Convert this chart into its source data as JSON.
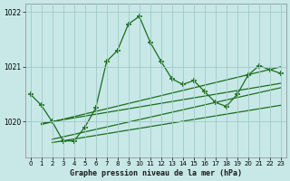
{
  "title": "Graphe pression niveau de la mer (hPa)",
  "background_color": "#c8e8e8",
  "grid_color": "#a0c8c8",
  "line_color": "#1a6e1a",
  "xlim": [
    -0.5,
    23.5
  ],
  "ylim": [
    1019.35,
    1022.15
  ],
  "yticks": [
    1020,
    1021,
    1022
  ],
  "xticks": [
    0,
    1,
    2,
    3,
    4,
    5,
    6,
    7,
    8,
    9,
    10,
    11,
    12,
    13,
    14,
    15,
    16,
    17,
    18,
    19,
    20,
    21,
    22,
    23
  ],
  "main_x": [
    0,
    1,
    2,
    3,
    4,
    5,
    6,
    7,
    8,
    9,
    10,
    11,
    12,
    13,
    14,
    15,
    16,
    17,
    18,
    19,
    20,
    21,
    22,
    23
  ],
  "main_y": [
    1020.5,
    1020.3,
    1020.0,
    1019.65,
    1019.65,
    1019.9,
    1020.25,
    1021.1,
    1021.3,
    1021.78,
    1021.92,
    1021.45,
    1021.1,
    1020.78,
    1020.68,
    1020.75,
    1020.55,
    1020.35,
    1020.28,
    1020.5,
    1020.85,
    1021.02,
    1020.95,
    1020.88
  ],
  "trend1_x": [
    1,
    23
  ],
  "trend1_y": [
    1019.95,
    1021.0
  ],
  "trend2_x": [
    1,
    23
  ],
  "trend2_y": [
    1019.97,
    1020.7
  ],
  "trend3_x": [
    2,
    23
  ],
  "trend3_y": [
    1019.68,
    1020.62
  ],
  "trend4_x": [
    2,
    23
  ],
  "trend4_y": [
    1019.62,
    1020.3
  ]
}
